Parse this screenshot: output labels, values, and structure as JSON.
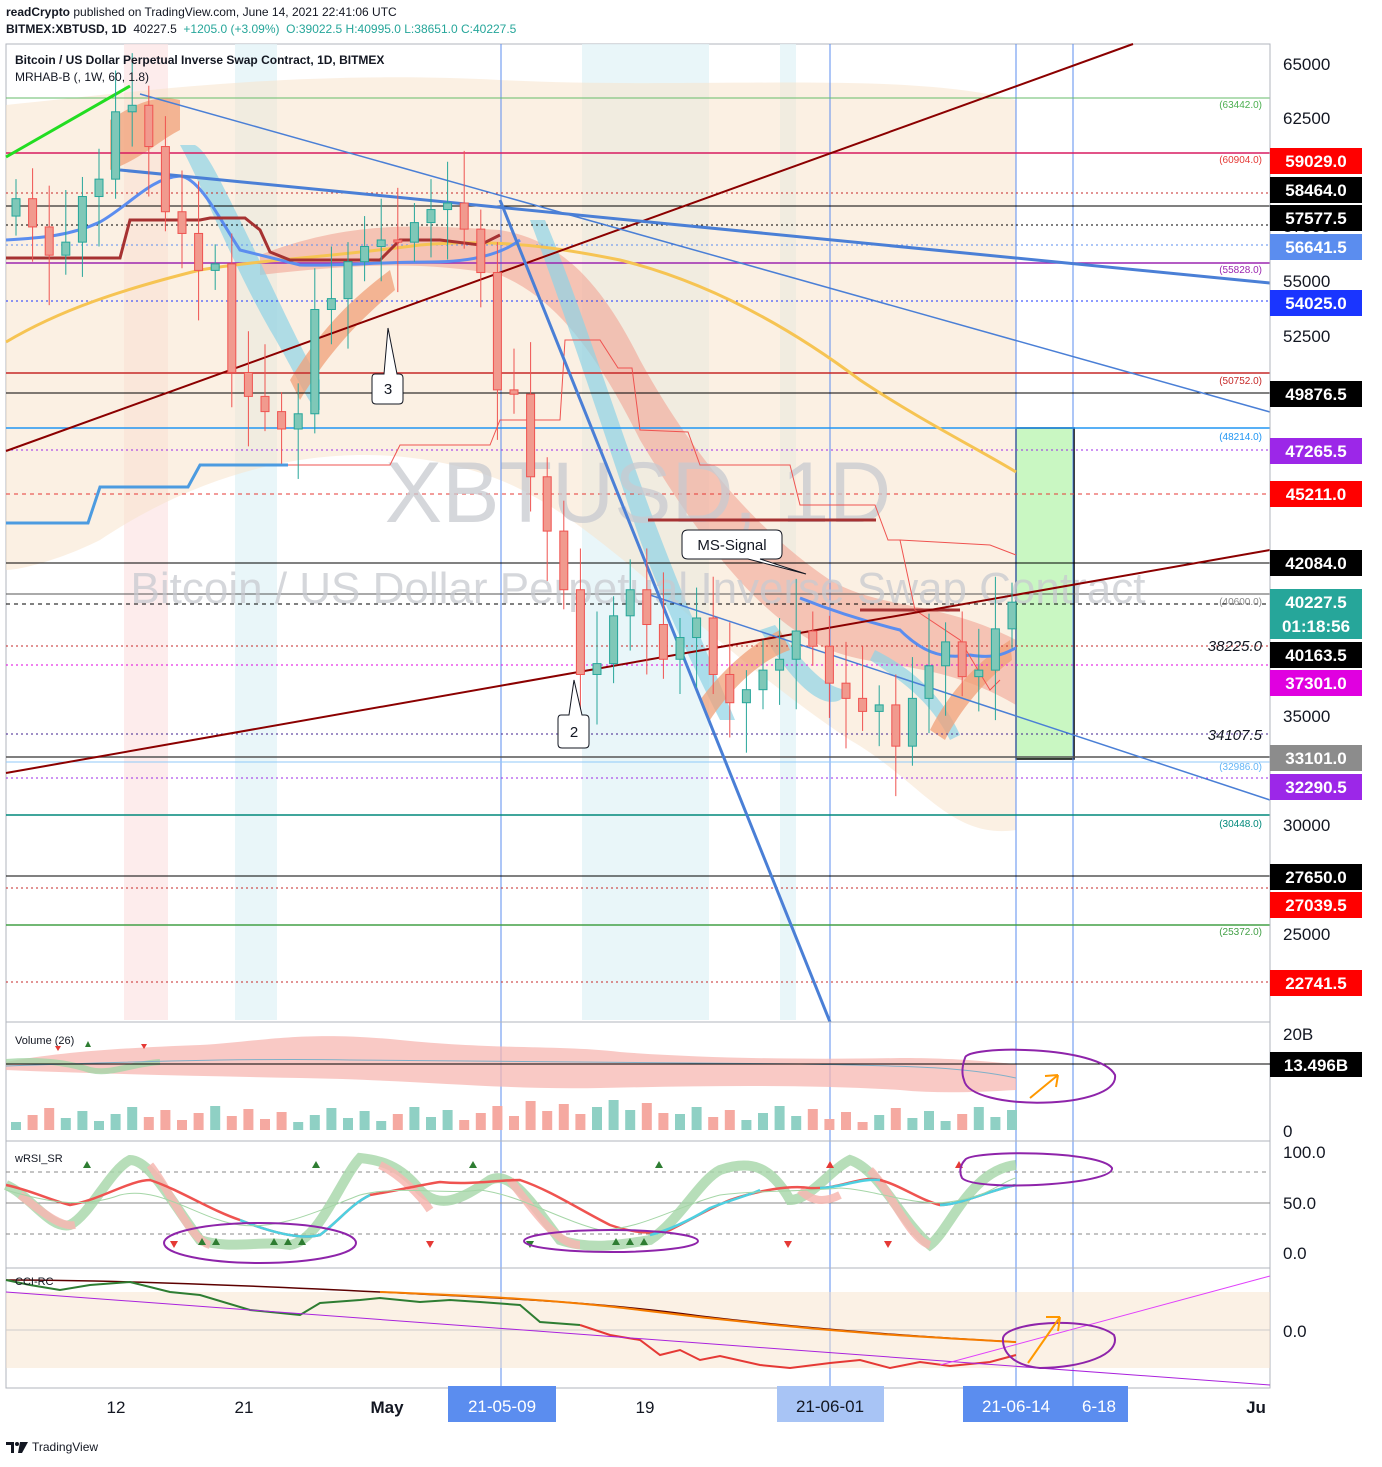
{
  "header": {
    "author": "readCrypto",
    "published": "published on TradingView.com, June 14, 2021 22:41:06 UTC",
    "symbol": "BITMEX:XBTUSD, 1D",
    "close": "40227.5",
    "change": "+1205.0 (+3.09%)",
    "ohlc": "O:39022.5 H:40995.0 L:38651.0 C:40227.5"
  },
  "legend": {
    "main_title": "Bitcoin / US Dollar Perpetual Inverse Swap Contract, 1D, BITMEX",
    "indicator": "MRHAB-B (, 1W, 60, 1.8)"
  },
  "watermark": {
    "symbol": "XBTUSD, 1D",
    "description": "Bitcoin / US Dollar Perpetual Inverse Swap Contract"
  },
  "annotations": {
    "ms_signal": "MS-Signal",
    "wave2": "2",
    "wave3": "3",
    "label_38225": "38225.0",
    "label_34107": "34107.5"
  },
  "panes": {
    "volume": "Volume (26)",
    "wrsi": "wRSI_SR",
    "cci": "CCI-RC"
  },
  "footer": {
    "brand": "TradingView"
  },
  "colors": {
    "up": "#26a69a",
    "down": "#ef5350",
    "accent_blue": "#2962ff",
    "trend_dark_red": "#8b0000"
  },
  "chart_data": {
    "type": "candlestick",
    "y_axis": {
      "ticks": [
        65000.0,
        62500.0,
        57500.0,
        55000.0,
        52500.0,
        35000.0,
        30000.0,
        25000.0
      ]
    },
    "x_axis": {
      "ticks": [
        "12",
        "21",
        "May",
        "19",
        "Ju"
      ],
      "highlighted": [
        "21-05-09",
        "21-06-01",
        "21-06-14",
        "6-18"
      ]
    },
    "price_badges": [
      {
        "value": "59029.0",
        "color": "#ff0000"
      },
      {
        "value": "58464.0",
        "color": "#000000"
      },
      {
        "value": "57577.5",
        "color": "#000000"
      },
      {
        "value": "56641.5",
        "color": "#5b8def"
      },
      {
        "value": "54025.0",
        "color": "#1a35ff"
      },
      {
        "value": "49876.5",
        "color": "#000000"
      },
      {
        "value": "47265.5",
        "color": "#9c27e8"
      },
      {
        "value": "45211.0",
        "color": "#ff0000"
      },
      {
        "value": "42084.0",
        "color": "#000000"
      },
      {
        "value": "40227.5",
        "color": "#26a69a"
      },
      {
        "value": "01:18:56",
        "color": "#26a69a"
      },
      {
        "value": "40163.5",
        "color": "#000000"
      },
      {
        "value": "37301.0",
        "color": "#e000e0"
      },
      {
        "value": "33101.0",
        "color": "#8c8c8c"
      },
      {
        "value": "32290.5",
        "color": "#9c27e8"
      },
      {
        "value": "27650.0",
        "color": "#000000"
      },
      {
        "value": "27039.5",
        "color": "#ff0000"
      },
      {
        "value": "22741.5",
        "color": "#ff0000"
      }
    ],
    "level_labels": [
      "(63442.0)",
      "(60904.0)",
      "(55828.0)",
      "(50752.0)",
      "(48214.0)",
      "(40600.0)",
      "(32986.0)",
      "(30448.0)",
      "(25372.0)"
    ],
    "candles_close_approx": [
      58800,
      57500,
      56200,
      56800,
      58900,
      59700,
      62800,
      63100,
      61200,
      58200,
      57200,
      55500,
      55800,
      50800,
      49700,
      49000,
      48200,
      48900,
      53700,
      54200,
      55900,
      56600,
      56900,
      56800,
      57700,
      58300,
      58600,
      57400,
      55400,
      50000,
      49800,
      46000,
      43500,
      40800,
      36900,
      37400,
      39600,
      40800,
      39200,
      37600,
      38600,
      39500,
      36900,
      35600,
      36200,
      37100,
      37600,
      38900,
      38200,
      36500,
      35800,
      35200,
      35500,
      33600,
      35800,
      37300,
      38400,
      36800,
      37100,
      39000,
      40227.5
    ],
    "sub_panes": {
      "volume": {
        "ticks": [
          "20B",
          "0"
        ],
        "badge": "13.496B"
      },
      "wrsi": {
        "ticks": [
          "100.0",
          "50.0",
          "0.0"
        ]
      },
      "cci": {
        "ticks": [
          "0.0"
        ]
      }
    }
  }
}
